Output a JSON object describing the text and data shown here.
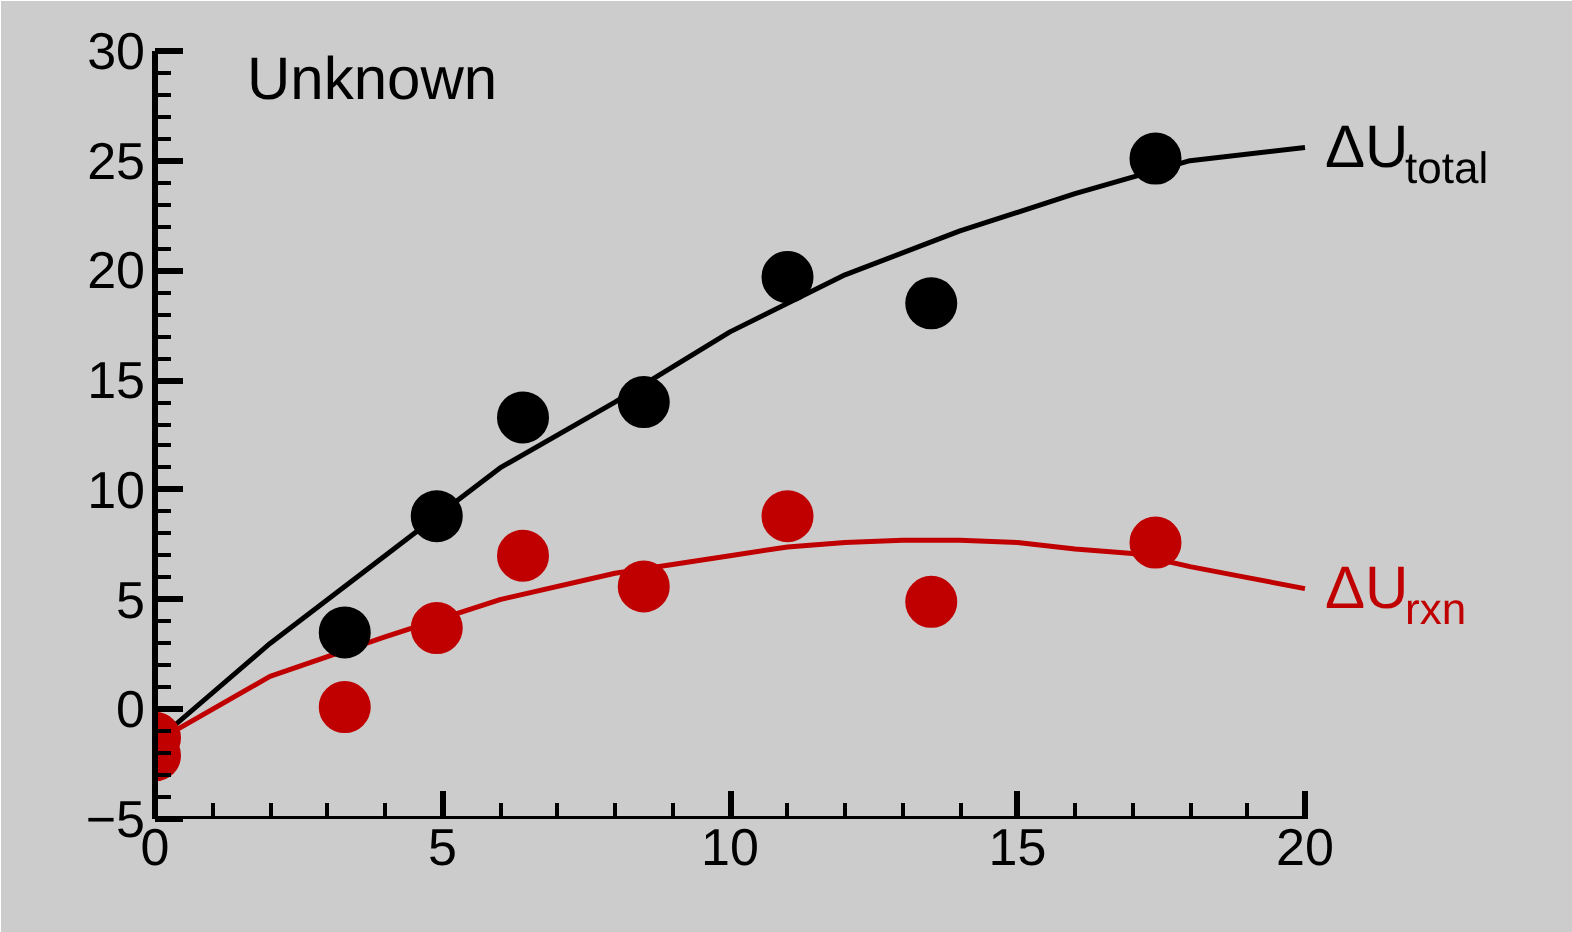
{
  "chart_data": {
    "type": "scatter",
    "title": "Unknown",
    "xlim": [
      0,
      20
    ],
    "xticks": [
      0,
      5,
      10,
      15,
      20
    ],
    "ylim": [
      -5,
      30
    ],
    "yticks": [
      -5,
      0,
      5,
      10,
      15,
      20,
      25,
      30
    ],
    "grid": false,
    "series": [
      {
        "type": "line",
        "name": "ΔU$_{total}$",
        "color": "#000000",
        "x": [
          0,
          2,
          4,
          6,
          8,
          10,
          12,
          14,
          16,
          18,
          20
        ],
        "values": [
          -1.5,
          3,
          7,
          11,
          14,
          17.2,
          19.8,
          21.8,
          23.5,
          25,
          25.6
        ]
      },
      {
        "type": "line",
        "name": "ΔU$_{rxn}$",
        "color": "#c00000",
        "x": [
          0,
          2,
          4,
          6,
          8,
          10,
          11,
          12,
          13,
          14,
          15,
          16,
          17,
          18,
          19,
          20
        ],
        "values": [
          -1.5,
          1.5,
          3.3,
          5,
          6.2,
          7,
          7.4,
          7.6,
          7.7,
          7.7,
          7.6,
          7.3,
          7.1,
          6.5,
          6,
          5.5
        ]
      },
      {
        "marker": "circle",
        "color": "#000000",
        "x": [
          3.3,
          4.9,
          6.4,
          8.5,
          11,
          13.5,
          17.4
        ],
        "values": [
          3.5,
          8.8,
          13.3,
          14,
          19.7,
          18.5,
          25.1
        ]
      },
      {
        "marker": "circle",
        "color": "#c00000",
        "x": [
          0,
          0,
          3.3,
          4.9,
          6.4,
          8.5,
          11,
          13.5,
          17.4
        ],
        "values": [
          -1.3,
          -2.1,
          0.1,
          3.7,
          7,
          5.6,
          8.8,
          4.9,
          7.6
        ]
      }
    ]
  }
}
